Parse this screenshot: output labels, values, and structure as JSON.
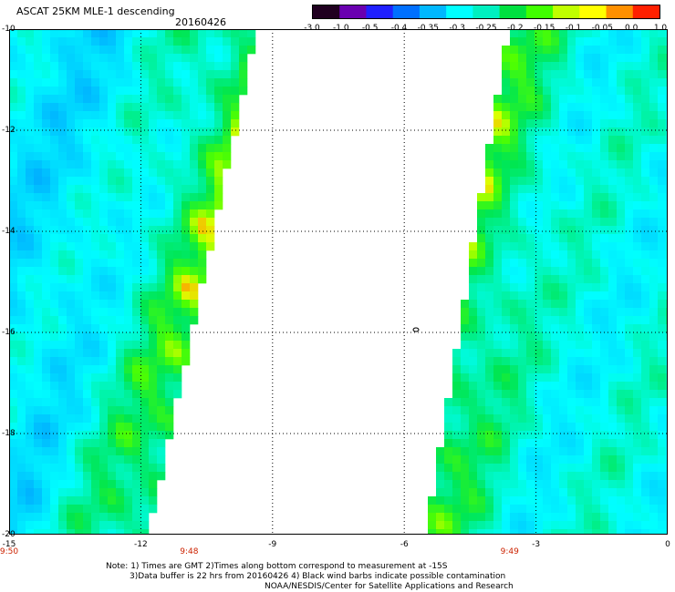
{
  "header": {
    "title": "ASCAT 25KM MLE-1 descending",
    "date": "20160426"
  },
  "colorbar": {
    "labels": [
      "-3.0",
      "-1.0",
      "-0.5",
      "-0.4",
      "-0.35",
      "-0.3",
      "-0.25",
      "-0.2",
      "-0.15",
      "-0.1",
      "-0.05",
      "0.0",
      "1.0"
    ],
    "colors": [
      "#200020",
      "#6a00b0",
      "#2020ff",
      "#0070ff",
      "#00b8ff",
      "#00ffff",
      "#00f0c0",
      "#00e040",
      "#40ff00",
      "#c0ff00",
      "#ffff00",
      "#ff9000",
      "#ff2000"
    ]
  },
  "map": {
    "lat_ticks": [
      {
        "lat": -10,
        "label": "-10"
      },
      {
        "lat": -12,
        "label": "-12"
      },
      {
        "lat": -14,
        "label": "-14"
      },
      {
        "lat": -16,
        "label": "-16"
      },
      {
        "lat": -18,
        "label": "-18"
      },
      {
        "lat": -20,
        "label": "-20"
      }
    ],
    "lon_ticks": [
      {
        "lon": -15,
        "label": "-15"
      },
      {
        "lon": -12,
        "label": "-12"
      },
      {
        "lon": -9,
        "label": "-9"
      },
      {
        "lon": -6,
        "label": "-6"
      },
      {
        "lon": -3,
        "label": "-3"
      },
      {
        "lon": 0,
        "label": "0"
      }
    ],
    "time_labels": [
      {
        "lon": -15,
        "label": "9:50"
      },
      {
        "lon": -10.9,
        "label": "9:48"
      },
      {
        "lon": -3.6,
        "label": "9:49"
      }
    ],
    "lat_range": [
      -20,
      -10
    ],
    "lon_range": [
      -15,
      0
    ],
    "swath_gap_note": "white area = no data"
  },
  "notes": {
    "line1": "Note: 1) Times are GMT 2)Times along bottom correspond to measurement at -15S",
    "line2": "3)Data buffer is 22 hrs from 20160426 4) Black wind barbs indicate possible contamination",
    "line3": "NOAA/NESDIS/Center for Satellite Applications and Research"
  }
}
